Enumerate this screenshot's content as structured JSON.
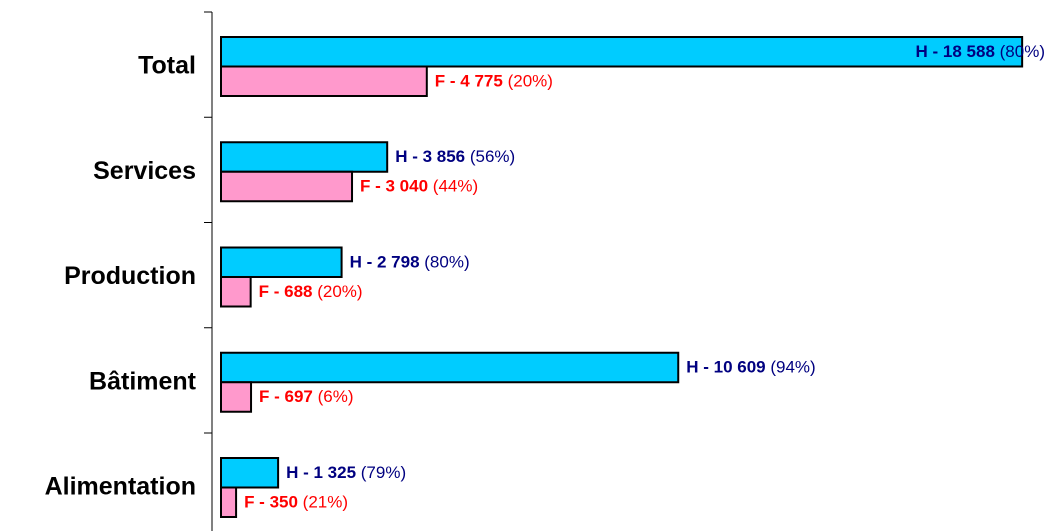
{
  "chart_data": {
    "type": "hbar",
    "categories": [
      "Total",
      "Services",
      "Production",
      "Bâtiment",
      "Alimentation"
    ],
    "series": [
      {
        "name": "H",
        "color": "#00ccff",
        "label_color": "#000080",
        "values": [
          18588,
          3856,
          2798,
          10609,
          1325
        ],
        "value_labels": [
          "H - 18 588",
          "H - 3 856",
          "H - 2 798",
          "H - 10 609",
          "H - 1 325"
        ],
        "shares": [
          80,
          56,
          80,
          94,
          79
        ],
        "share_labels": [
          "(80%)",
          "(56%)",
          "(80%)",
          "(94%)",
          "(79%)"
        ]
      },
      {
        "name": "F",
        "color": "#ff99cc",
        "label_color": "#ff0000",
        "values": [
          4775,
          3040,
          688,
          697,
          350
        ],
        "value_labels": [
          "F - 4 775",
          "F - 3 040",
          "F - 688",
          "F - 697",
          "F - 350"
        ],
        "shares": [
          20,
          44,
          20,
          6,
          21
        ],
        "share_labels": [
          "(20%)",
          "(44%)",
          "(20%)",
          "(6%)",
          "(21%)"
        ]
      }
    ],
    "xlim": [
      0,
      20000
    ]
  }
}
